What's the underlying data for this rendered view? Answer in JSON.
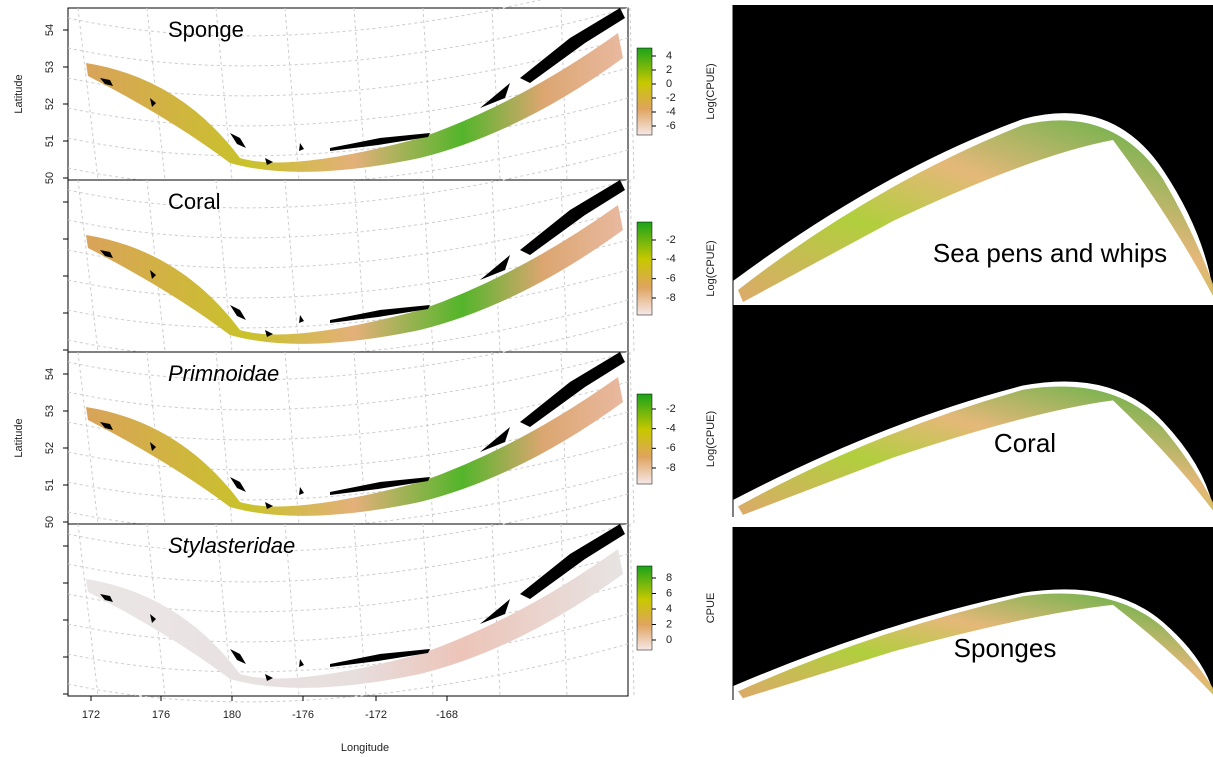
{
  "left_panels": [
    {
      "title": "Sponge",
      "y_label": "Latitude",
      "y_ticks": [
        54,
        53,
        52,
        51,
        50
      ],
      "colorbar_label": "Log(CPUE)",
      "colorbar_ticks": [
        4,
        2,
        0,
        -2,
        -4,
        -6
      ]
    },
    {
      "title": "Coral",
      "colorbar_label": "Log(CPUE)",
      "colorbar_ticks": [
        -2,
        -4,
        -6,
        -8
      ]
    },
    {
      "title": "Primnoidae",
      "y_label": "Latitude",
      "y_ticks": [
        54,
        53,
        52,
        51,
        50
      ],
      "colorbar_label": "Log(CPUE)",
      "colorbar_ticks": [
        -2,
        -4,
        -6,
        -8
      ]
    },
    {
      "title": "Stylasteridae",
      "colorbar_label": "CPUE",
      "colorbar_ticks": [
        8,
        6,
        4,
        2,
        0
      ]
    }
  ],
  "x_label": "Longitude",
  "x_ticks": [
    172,
    176,
    180,
    -176,
    -172,
    -168
  ],
  "right_panels": [
    {
      "title": "Sea pens and whips"
    },
    {
      "title": "Coral"
    },
    {
      "title": "Sponges"
    }
  ]
}
